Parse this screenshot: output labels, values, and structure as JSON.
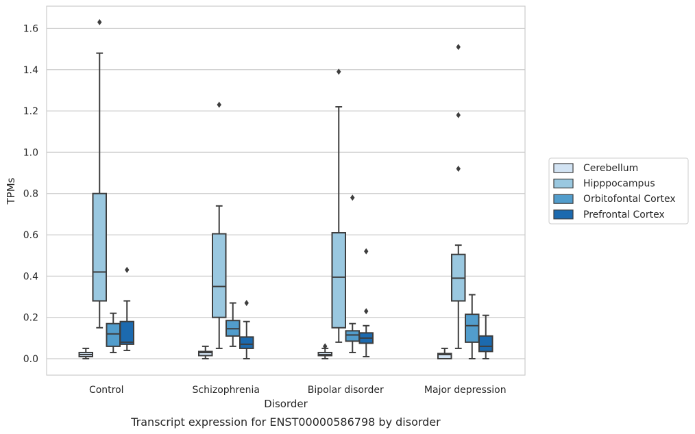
{
  "chart_data": {
    "type": "box",
    "title": "",
    "caption": "Transcript expression for ENST00000586798 by disorder",
    "xlabel": "Disorder",
    "ylabel": "TPMs",
    "ylim": [
      -0.08,
      1.72
    ],
    "yticks": [
      0.0,
      0.2,
      0.4,
      0.6,
      0.8,
      1.0,
      1.2,
      1.4,
      1.6
    ],
    "ytick_labels": [
      "0.0",
      "0.2",
      "0.4",
      "0.6",
      "0.8",
      "1.0",
      "1.2",
      "1.4",
      "1.6"
    ],
    "grid": "horizontal",
    "legend_position": "right",
    "categories": [
      "Control",
      "Schizophrenia",
      "Bipolar disorder",
      "Major depression"
    ],
    "series": [
      {
        "name": "Cerebellum",
        "color": "#d2e3f3",
        "boxes": [
          {
            "whislo": 0.0,
            "q1": 0.01,
            "med": 0.02,
            "q3": 0.03,
            "whishi": 0.05,
            "fliers": []
          },
          {
            "whislo": 0.0,
            "q1": 0.015,
            "med": 0.03,
            "q3": 0.035,
            "whishi": 0.06,
            "fliers": []
          },
          {
            "whislo": 0.0,
            "q1": 0.015,
            "med": 0.02,
            "q3": 0.03,
            "whishi": 0.05,
            "fliers": [
              0.06
            ]
          },
          {
            "whislo": 0.0,
            "q1": 0.0,
            "med": 0.02,
            "q3": 0.025,
            "whishi": 0.05,
            "fliers": []
          }
        ]
      },
      {
        "name": "Hipppocampus",
        "color": "#9ac8e0",
        "boxes": [
          {
            "whislo": 0.15,
            "q1": 0.28,
            "med": 0.42,
            "q3": 0.8,
            "whishi": 1.48,
            "fliers": [
              1.63
            ]
          },
          {
            "whislo": 0.05,
            "q1": 0.2,
            "med": 0.35,
            "q3": 0.605,
            "whishi": 0.74,
            "fliers": [
              1.23
            ]
          },
          {
            "whislo": 0.08,
            "q1": 0.15,
            "med": 0.395,
            "q3": 0.61,
            "whishi": 1.22,
            "fliers": [
              1.39
            ]
          },
          {
            "whislo": 0.05,
            "q1": 0.28,
            "med": 0.39,
            "q3": 0.505,
            "whishi": 0.55,
            "fliers": [
              0.92,
              1.18,
              1.51
            ]
          }
        ]
      },
      {
        "name": "Orbitofontal Cortex",
        "color": "#529dcc",
        "boxes": [
          {
            "whislo": 0.03,
            "q1": 0.06,
            "med": 0.12,
            "q3": 0.17,
            "whishi": 0.22,
            "fliers": []
          },
          {
            "whislo": 0.06,
            "q1": 0.11,
            "med": 0.145,
            "q3": 0.185,
            "whishi": 0.27,
            "fliers": []
          },
          {
            "whislo": 0.03,
            "q1": 0.085,
            "med": 0.115,
            "q3": 0.135,
            "whishi": 0.17,
            "fliers": [
              0.78
            ]
          },
          {
            "whislo": 0.0,
            "q1": 0.08,
            "med": 0.16,
            "q3": 0.215,
            "whishi": 0.31,
            "fliers": []
          }
        ]
      },
      {
        "name": "Prefrontal Cortex",
        "color": "#1c6aaf",
        "boxes": [
          {
            "whislo": 0.04,
            "q1": 0.07,
            "med": 0.08,
            "q3": 0.18,
            "whishi": 0.28,
            "fliers": [
              0.43
            ]
          },
          {
            "whislo": 0.0,
            "q1": 0.05,
            "med": 0.07,
            "q3": 0.105,
            "whishi": 0.18,
            "fliers": [
              0.27
            ]
          },
          {
            "whislo": 0.01,
            "q1": 0.075,
            "med": 0.1,
            "q3": 0.125,
            "whishi": 0.16,
            "fliers": [
              0.23,
              0.52
            ]
          },
          {
            "whislo": 0.0,
            "q1": 0.035,
            "med": 0.06,
            "q3": 0.11,
            "whishi": 0.21,
            "fliers": []
          }
        ]
      }
    ]
  }
}
